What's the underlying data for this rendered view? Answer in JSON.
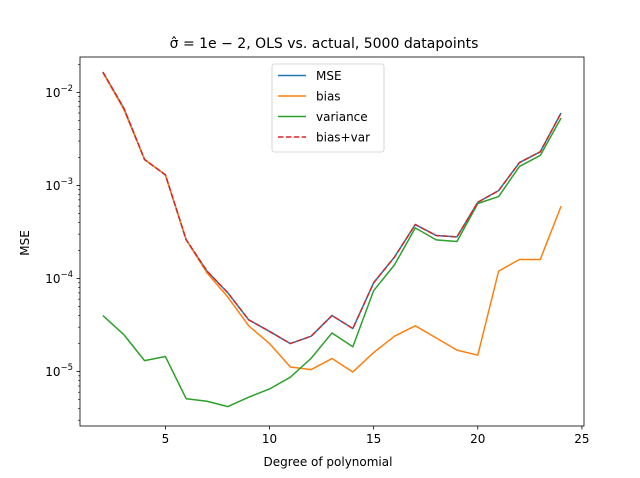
{
  "chart_data": {
    "type": "line",
    "title": "σ̂ = 1e − 2, OLS vs. actual, 5000 datapoints",
    "xlabel": "Degree of polynomial",
    "ylabel": "MSE",
    "xlim": [
      0.9,
      25.1
    ],
    "ylim": [
      2.6e-06,
      0.024
    ],
    "yscale": "log",
    "grid": false,
    "legend_position": "top-center",
    "x": [
      2,
      3,
      4,
      5,
      6,
      7,
      8,
      9,
      10,
      11,
      12,
      13,
      14,
      15,
      16,
      17,
      18,
      19,
      20,
      21,
      22,
      23,
      24
    ],
    "x_ticks": [
      5,
      10,
      15,
      20,
      25
    ],
    "x_tick_labels": [
      "5",
      "10",
      "15",
      "20",
      "25"
    ],
    "y_ticks": [
      1e-05,
      0.0001,
      0.001,
      0.01
    ],
    "y_tick_labels": [
      {
        "base": "10",
        "exp": "−5"
      },
      {
        "base": "10",
        "exp": "−4"
      },
      {
        "base": "10",
        "exp": "−3"
      },
      {
        "base": "10",
        "exp": "−2"
      }
    ],
    "series": [
      {
        "name": "MSE",
        "color": "#1f77b4",
        "dash": "solid",
        "values": [
          0.0165,
          0.0068,
          0.0019,
          0.0013,
          0.00026,
          0.00012,
          7e-05,
          3.6e-05,
          2.7e-05,
          2e-05,
          2.4e-05,
          4e-05,
          2.9e-05,
          9e-05,
          0.00017,
          0.00038,
          0.00029,
          0.00028,
          0.00066,
          0.00088,
          0.00176,
          0.0023,
          0.006
        ]
      },
      {
        "name": "bias",
        "color": "#ff7f0e",
        "dash": "solid",
        "values": [
          0.0163,
          0.0066,
          0.0019,
          0.0013,
          0.00026,
          0.000115,
          6.3e-05,
          3.1e-05,
          2e-05,
          1.12e-05,
          1.05e-05,
          1.38e-05,
          9.9e-06,
          1.6e-05,
          2.4e-05,
          3.1e-05,
          2.3e-05,
          1.7e-05,
          1.5e-05,
          0.00012,
          0.00016,
          0.00016,
          0.0006
        ]
      },
      {
        "name": "variance",
        "color": "#2ca02c",
        "dash": "solid",
        "values": [
          4e-05,
          2.5e-05,
          1.31e-05,
          1.45e-05,
          5.1e-06,
          4.8e-06,
          4.2e-06,
          5.3e-06,
          6.5e-06,
          8.7e-06,
          1.39e-05,
          2.6e-05,
          1.85e-05,
          7.4e-05,
          0.00014,
          0.00035,
          0.00026,
          0.00025,
          0.00064,
          0.00076,
          0.0016,
          0.0021,
          0.0053
        ]
      },
      {
        "name": "bias+var",
        "color": "#d62728",
        "dash": "dashed",
        "values": [
          0.0165,
          0.0068,
          0.0019,
          0.0013,
          0.00026,
          0.00012,
          7e-05,
          3.6e-05,
          2.7e-05,
          2e-05,
          2.4e-05,
          4e-05,
          2.9e-05,
          9e-05,
          0.00017,
          0.00038,
          0.00029,
          0.00028,
          0.00066,
          0.00088,
          0.00176,
          0.0023,
          0.006
        ]
      }
    ]
  }
}
